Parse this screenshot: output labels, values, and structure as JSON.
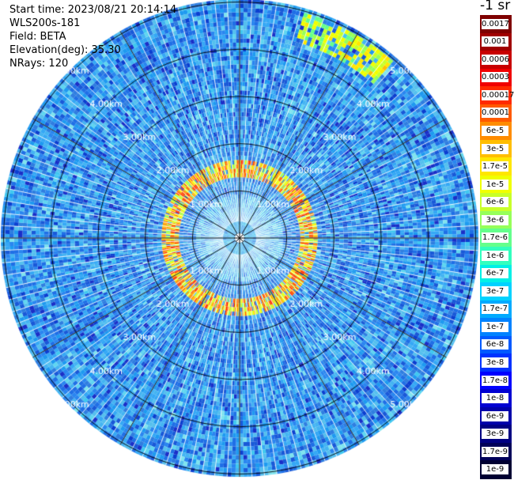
{
  "header": {
    "start_time": "Start time: 2023/08/21 20:14:14",
    "station": "WLS200s-181",
    "field": "Field: BETA",
    "elevation": "Elevation(deg): 35.30",
    "nrays": "NRays: 120"
  },
  "colorbar": {
    "unit_label": "-1 sr",
    "levels": [
      {
        "label": "0.0017",
        "color": "#7f0000"
      },
      {
        "label": "0.001",
        "color": "#a00000"
      },
      {
        "label": "0.0006",
        "color": "#c80000"
      },
      {
        "label": "0.0003",
        "color": "#f00000"
      },
      {
        "label": "0.00017",
        "color": "#ff2a00"
      },
      {
        "label": "0.0001",
        "color": "#ff5a00"
      },
      {
        "label": "6e-5",
        "color": "#ff8c00"
      },
      {
        "label": "3e-5",
        "color": "#ffbe00"
      },
      {
        "label": "1.7e-5",
        "color": "#ffe600"
      },
      {
        "label": "1e-5",
        "color": "#f0ff00"
      },
      {
        "label": "6e-6",
        "color": "#c8ff2a"
      },
      {
        "label": "3e-6",
        "color": "#96ff5a"
      },
      {
        "label": "1.7e-6",
        "color": "#64ff8c"
      },
      {
        "label": "1e-6",
        "color": "#32ffbe"
      },
      {
        "label": "6e-7",
        "color": "#00f0e6"
      },
      {
        "label": "3e-7",
        "color": "#00d2ff"
      },
      {
        "label": "1.7e-7",
        "color": "#00aaff"
      },
      {
        "label": "1e-7",
        "color": "#0082ff"
      },
      {
        "label": "6e-8",
        "color": "#005aff"
      },
      {
        "label": "3e-8",
        "color": "#0032ff"
      },
      {
        "label": "1.7e-8",
        "color": "#0000ff"
      },
      {
        "label": "1e-8",
        "color": "#0000d2"
      },
      {
        "label": "6e-9",
        "color": "#0000aa"
      },
      {
        "label": "3e-9",
        "color": "#000082"
      },
      {
        "label": "1.7e-9",
        "color": "#00005a"
      },
      {
        "label": "1e-9",
        "color": "#000032"
      }
    ]
  },
  "chart_data": {
    "type": "heatmap",
    "title": "",
    "xlabel": "",
    "ylabel": "",
    "projection": "polar",
    "range_rings_km": [
      1,
      2,
      3,
      4,
      5
    ],
    "range_ring_labels": [
      "1.00km",
      "2.00km",
      "3.00km",
      "4.00km",
      "5.00km"
    ],
    "max_range_km": 5.06,
    "radial_spokes": 12,
    "azimuth_rays": 120,
    "background_value": "1e-7",
    "features": [
      {
        "name": "inner ring",
        "range_km": [
          1.3,
          1.6
        ],
        "value": "6e-5"
      },
      {
        "name": "north-east arc",
        "range_km": [
          4.4,
          4.9
        ],
        "azimuth_deg": [
          18,
          38
        ],
        "value": "1e-5"
      }
    ]
  }
}
